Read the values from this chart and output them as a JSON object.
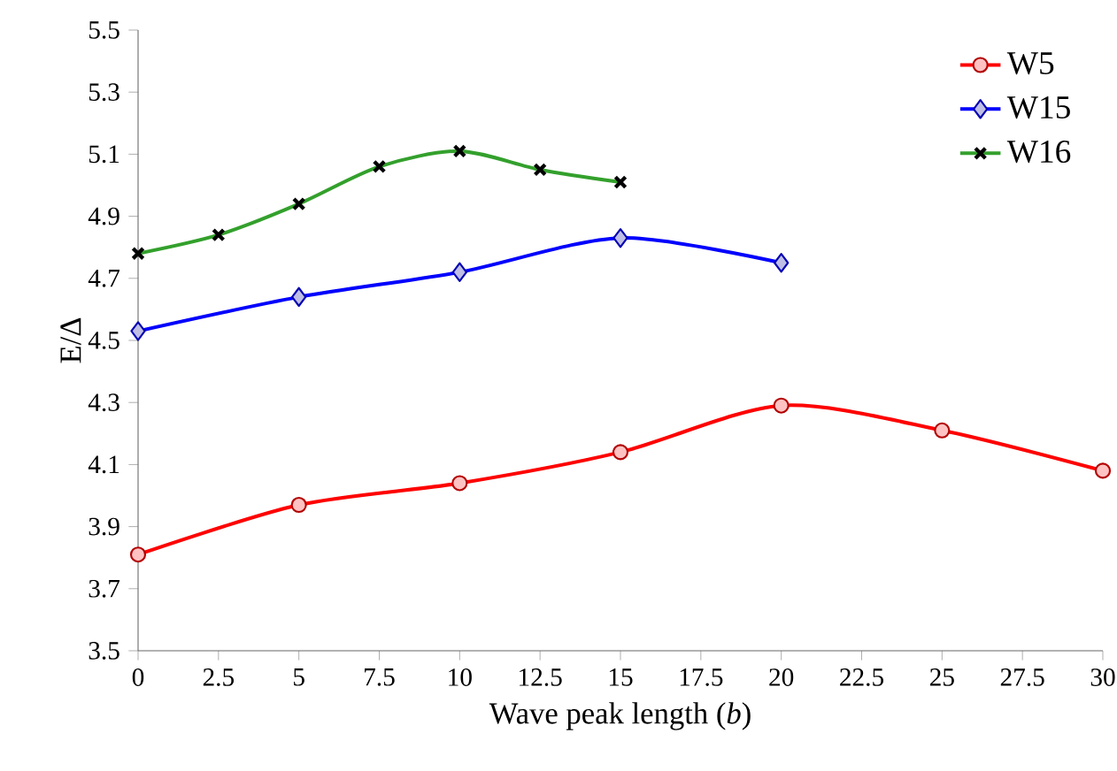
{
  "chart_data": {
    "type": "line",
    "xlabel": "Wave peak length (*b*)",
    "ylabel": "E/Δ",
    "series": [
      {
        "name": "W5",
        "color": "#ff0000",
        "marker": "circle",
        "x": [
          0,
          5,
          10,
          15,
          20,
          25,
          30
        ],
        "values": [
          3.81,
          3.97,
          4.04,
          4.14,
          4.29,
          4.21,
          4.08
        ]
      },
      {
        "name": "W15",
        "color": "#0000ff",
        "marker": "diamond",
        "x": [
          0,
          5,
          10,
          15,
          20
        ],
        "values": [
          4.53,
          4.64,
          4.72,
          4.83,
          4.75
        ]
      },
      {
        "name": "W16",
        "color": "#33a02c",
        "marker": "cross",
        "x": [
          0,
          2.5,
          5,
          7.5,
          10,
          12.5,
          15
        ],
        "values": [
          4.78,
          4.84,
          4.94,
          5.06,
          5.11,
          5.05,
          5.01
        ]
      }
    ],
    "xlim": [
      0,
      30
    ],
    "ylim": [
      3.5,
      5.5
    ],
    "xticks": [
      0,
      2.5,
      5,
      7.5,
      10,
      12.5,
      15,
      17.5,
      20,
      22.5,
      25,
      27.5,
      30
    ],
    "yticks": [
      {
        "value": 3.5,
        "label": "3.5"
      },
      {
        "value": 3.7,
        "label": "3.7"
      },
      {
        "value": 3.9,
        "label": "3.9"
      },
      {
        "value": 4.1,
        "label": "4.1"
      },
      {
        "value": 4.3,
        "label": "4.3"
      },
      {
        "value": 4.5,
        "label": "4.5"
      },
      {
        "value": 4.7,
        "label": "4.7"
      },
      {
        "value": 4.9,
        "label": "4.9"
      },
      {
        "value": 5.1,
        "label": "5.1"
      },
      {
        "value": 5.3,
        "label": "5.3"
      },
      {
        "value": 5.5,
        "label": "5.5"
      }
    ],
    "legend": "top right",
    "grid": false,
    "line_style": "solid"
  }
}
